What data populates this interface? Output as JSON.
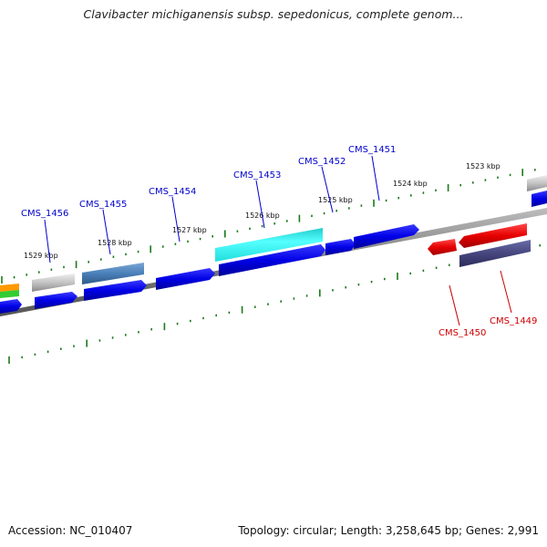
{
  "title": "Clavibacter michiganensis subsp. sepedonicus, complete genom...",
  "footer": {
    "accession": "Accession: NC_010407",
    "summary": "Topology: circular; Length: 3,258,645 bp; Genes: 2,991"
  },
  "colors": {
    "backbone": "#7a7a7a",
    "ticks": "#1a7a1a",
    "forward_label": "#0000cc",
    "reverse_label": "#cc0000"
  },
  "tick_labels": [
    "1529 kbp",
    "1528 kbp",
    "1527 kbp",
    "1526 kbp",
    "1525 kbp",
    "1524 kbp",
    "1523 kbp"
  ],
  "gene_labels": [
    {
      "name": "CMS_1456",
      "strand": "forward"
    },
    {
      "name": "CMS_1455",
      "strand": "forward"
    },
    {
      "name": "CMS_1454",
      "strand": "forward"
    },
    {
      "name": "CMS_1453",
      "strand": "forward"
    },
    {
      "name": "CMS_1452",
      "strand": "forward"
    },
    {
      "name": "CMS_1451",
      "strand": "forward"
    },
    {
      "name": "CMS_1450",
      "strand": "reverse"
    },
    {
      "name": "CMS_1449",
      "strand": "reverse"
    }
  ]
}
